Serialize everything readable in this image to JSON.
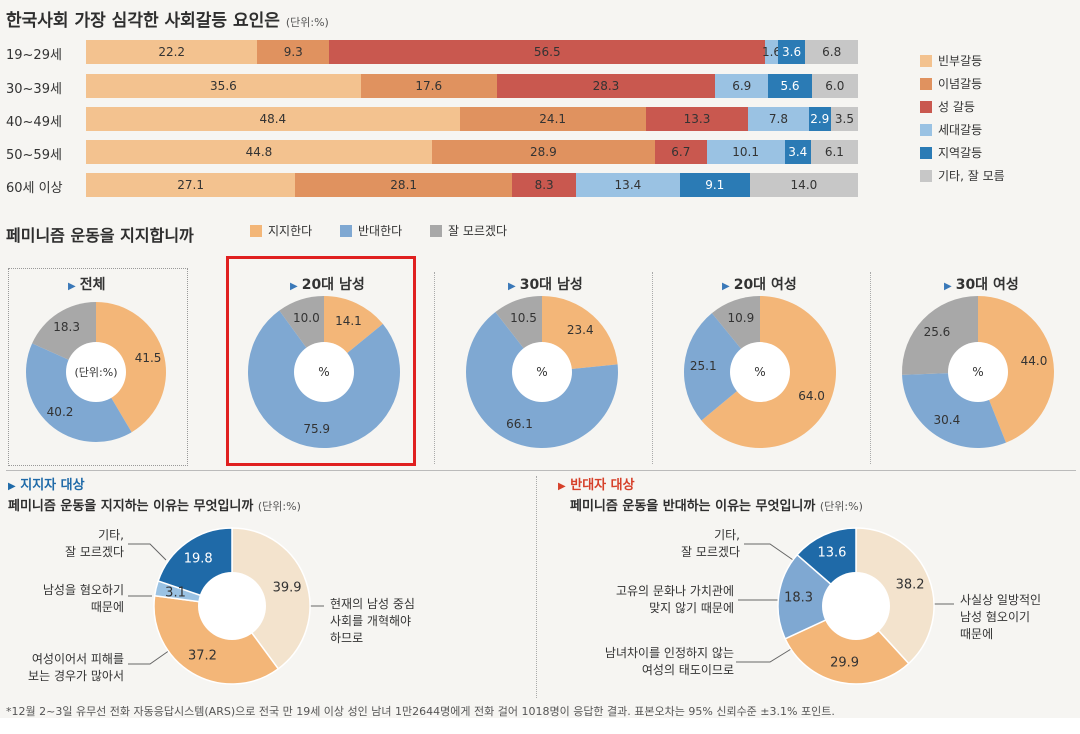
{
  "colors": {
    "poverty": "#f3c28f",
    "ideology": "#e0925f",
    "gender": "#c9584f",
    "generation": "#9ac2e3",
    "region": "#2b7bb5",
    "other": "#c7c7c7",
    "support": "#f3b678",
    "oppose": "#7fa8d2",
    "unknown": "#a8a8a8",
    "highlight": "#e02020",
    "support_dark": "#1f6aa8",
    "oppose_red": "#d6402a"
  },
  "bar_section": {
    "title": "한국사회 가장 심각한 사회갈등 요인은",
    "unit": "(단위:%)"
  },
  "pie_section": {
    "title": "페미니즘 운동을 지지합니까",
    "legend": [
      "지지한다",
      "반대한다",
      "잘 모르겠다"
    ],
    "center_unit": "(단위:%)",
    "center_pct": "%"
  },
  "reasons": {
    "support_tag": "지지자 대상",
    "support_title": "페미니즘 운동을 지지하는 이유는 무엇입니까",
    "oppose_tag": "반대자 대상",
    "oppose_title": "페미니즘 운동을 반대하는 이유는 무엇입니까",
    "unit": "(단위:%)",
    "support_labels": {
      "other": "기타,\n잘 모르겠다",
      "hate_men": "남성을 혐오하기\n때문에",
      "victim": "여성이어서 피해를\n보는 경우가 많아서",
      "reform": "현재의 남성 중심\n사회를 개혁해야\n하므로"
    },
    "oppose_labels": {
      "other": "기타,\n잘 모르겠다",
      "culture": "고유의 문화나 가치관에\n맞지 않기 때문에",
      "difference": "남녀차이를 인정하지 않는\n여성의 태도이므로",
      "hate": "사실상 일방적인\n남성 혐오이기\n때문에"
    }
  },
  "footnote": "*12월 2~3일 유무선 전화 자동응답시스템(ARS)으로 전국 만 19세 이상 성인 남녀 1만2644명에게 전화 걸어 1018명이 응답한 결과. 표본오차는 95% 신뢰수준 ±3.1% 포인트.",
  "chart_data": [
    {
      "type": "bar",
      "stacked": true,
      "orientation": "horizontal",
      "title": "한국사회 가장 심각한 사회갈등 요인은",
      "categories": [
        "19~29세",
        "30~39세",
        "40~49세",
        "50~59세",
        "60세 이상"
      ],
      "series": [
        {
          "name": "빈부갈등",
          "values": [
            22.2,
            35.6,
            48.4,
            44.8,
            27.1
          ]
        },
        {
          "name": "이념갈등",
          "values": [
            9.3,
            17.6,
            24.1,
            28.9,
            28.1
          ]
        },
        {
          "name": "성 갈등",
          "values": [
            56.5,
            28.3,
            13.3,
            6.7,
            8.3
          ]
        },
        {
          "name": "세대갈등",
          "values": [
            1.6,
            6.9,
            7.8,
            10.1,
            13.4
          ]
        },
        {
          "name": "지역갈등",
          "values": [
            3.6,
            5.6,
            2.9,
            3.4,
            9.1
          ]
        },
        {
          "name": "기타, 잘 모름",
          "values": [
            6.8,
            6.0,
            3.5,
            6.1,
            14.0
          ]
        }
      ],
      "legend": "right"
    },
    {
      "type": "pie",
      "title": "페미니즘 운동을 지지합니까",
      "labels": [
        "지지한다",
        "반대한다",
        "잘 모르겠다"
      ],
      "charts": [
        {
          "name": "전체",
          "values": [
            41.5,
            40.2,
            18.3
          ]
        },
        {
          "name": "20대 남성",
          "values": [
            14.1,
            75.9,
            10.0
          ]
        },
        {
          "name": "30대 남성",
          "values": [
            23.4,
            66.1,
            10.5
          ]
        },
        {
          "name": "20대 여성",
          "values": [
            64.0,
            25.1,
            10.9
          ]
        },
        {
          "name": "30대 여성",
          "values": [
            44.0,
            30.4,
            25.6
          ]
        }
      ]
    },
    {
      "type": "pie",
      "title": "페미니즘 운동을 지지하는 이유는 무엇입니까",
      "labels": [
        "현재의 남성 중심 사회를 개혁해야 하므로",
        "여성이어서 피해를 보는 경우가 많아서",
        "남성을 혐오하기 때문에",
        "기타, 잘 모르겠다"
      ],
      "values": [
        39.9,
        37.2,
        3.1,
        19.8
      ]
    },
    {
      "type": "pie",
      "title": "페미니즘 운동을 반대하는 이유는 무엇입니까",
      "labels": [
        "사실상 일방적인 남성 혐오이기 때문에",
        "남녀차이를 인정하지 않는 여성의 태도이므로",
        "고유의 문화나 가치관에 맞지 않기 때문에",
        "기타, 잘 모르겠다"
      ],
      "values": [
        38.2,
        29.9,
        18.3,
        13.6
      ]
    }
  ]
}
